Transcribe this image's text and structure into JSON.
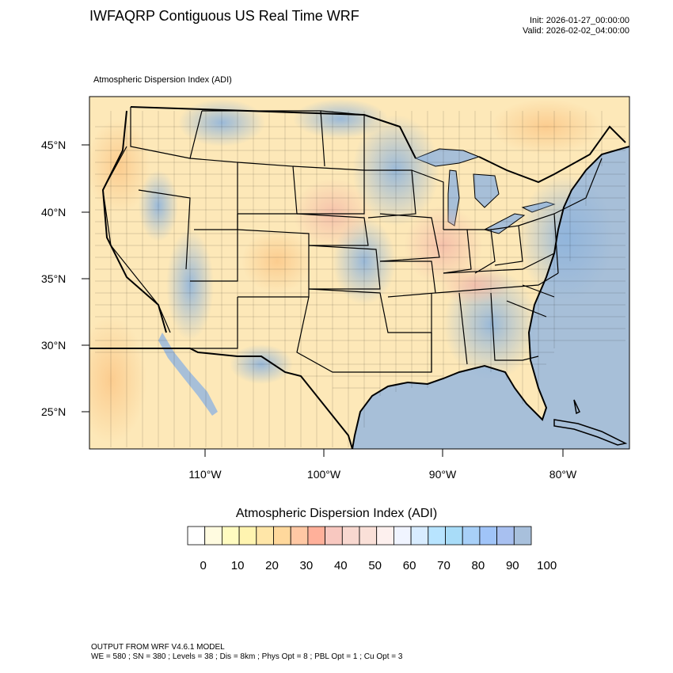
{
  "header": {
    "title": "IWFAQRP Contiguous US Real Time WRF",
    "init": "Init: 2026-01-27_00:00:00",
    "valid": "Valid: 2026-02-02_04:00:00"
  },
  "map": {
    "field_label": "Atmospheric Dispersion Index   (ADI)",
    "lat_labels": [
      "45°N",
      "40°N",
      "35°N",
      "30°N",
      "25°N"
    ],
    "lon_labels": [
      "110°W",
      "100°W",
      "90°W",
      "80°W"
    ],
    "colors": {
      "ocean": "#a7bfd8",
      "land_base": "#fde8b8"
    }
  },
  "colorbar": {
    "title": "Atmospheric Dispersion Index  (ADI)",
    "colors": [
      "#ffffff",
      "#fffbe0",
      "#fffbc0",
      "#fff4b0",
      "#ffe6a8",
      "#ffd89c",
      "#ffc8a4",
      "#ffb09a",
      "#f8c8c0",
      "#f8d8d0",
      "#fae0d8",
      "#fdf0ee",
      "#f0f4ff",
      "#d8ecff",
      "#b8e4ff",
      "#a8dcf8",
      "#a8d0f8",
      "#a0c4f8",
      "#a8c0f0",
      "#a8c0dc"
    ],
    "tick_labels": [
      "0",
      "10",
      "20",
      "30",
      "40",
      "50",
      "60",
      "70",
      "80",
      "90",
      "100"
    ]
  },
  "footer": {
    "model": "OUTPUT FROM WRF V4.6.1 MODEL",
    "config": "WE = 580 ; SN = 380 ; Levels = 38 ; Dis = 8km ; Phys Opt = 8 ; PBL Opt = 1 ; Cu Opt = 3"
  }
}
